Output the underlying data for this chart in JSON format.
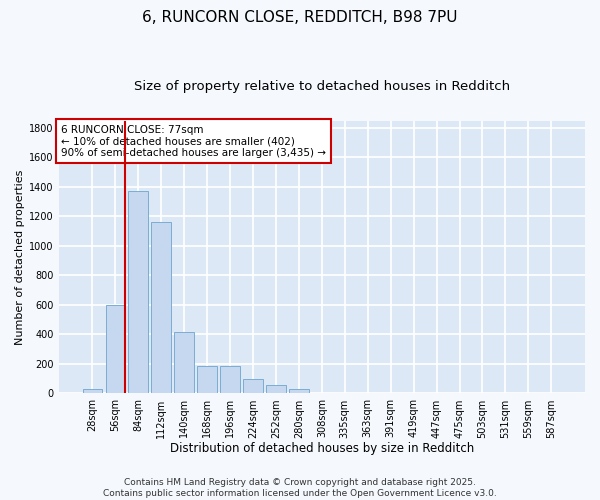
{
  "title1": "6, RUNCORN CLOSE, REDDITCH, B98 7PU",
  "title2": "Size of property relative to detached houses in Redditch",
  "xlabel": "Distribution of detached houses by size in Redditch",
  "ylabel": "Number of detached properties",
  "bar_labels": [
    "28sqm",
    "56sqm",
    "84sqm",
    "112sqm",
    "140sqm",
    "168sqm",
    "196sqm",
    "224sqm",
    "252sqm",
    "280sqm",
    "308sqm",
    "335sqm",
    "363sqm",
    "391sqm",
    "419sqm",
    "447sqm",
    "475sqm",
    "503sqm",
    "531sqm",
    "559sqm",
    "587sqm"
  ],
  "bar_values": [
    30,
    600,
    1370,
    1160,
    415,
    185,
    185,
    100,
    60,
    30,
    5,
    0,
    5,
    0,
    0,
    0,
    0,
    0,
    0,
    0,
    0
  ],
  "bar_color": "#c5d8f0",
  "bar_edge_color": "#7aadd4",
  "background_color": "#dce8f5",
  "grid_color": "#ffffff",
  "vline_color": "#cc0000",
  "annotation_text": "6 RUNCORN CLOSE: 77sqm\n← 10% of detached houses are smaller (402)\n90% of semi-detached houses are larger (3,435) →",
  "annotation_box_color": "#ffffff",
  "annotation_box_edge_color": "#cc0000",
  "ylim": [
    0,
    1850
  ],
  "yticks": [
    0,
    200,
    400,
    600,
    800,
    1000,
    1200,
    1400,
    1600,
    1800
  ],
  "footer": "Contains HM Land Registry data © Crown copyright and database right 2025.\nContains public sector information licensed under the Open Government Licence v3.0.",
  "title1_fontsize": 11,
  "title2_fontsize": 9.5,
  "xlabel_fontsize": 8.5,
  "ylabel_fontsize": 8,
  "tick_fontsize": 7,
  "annotation_fontsize": 7.5,
  "footer_fontsize": 6.5
}
